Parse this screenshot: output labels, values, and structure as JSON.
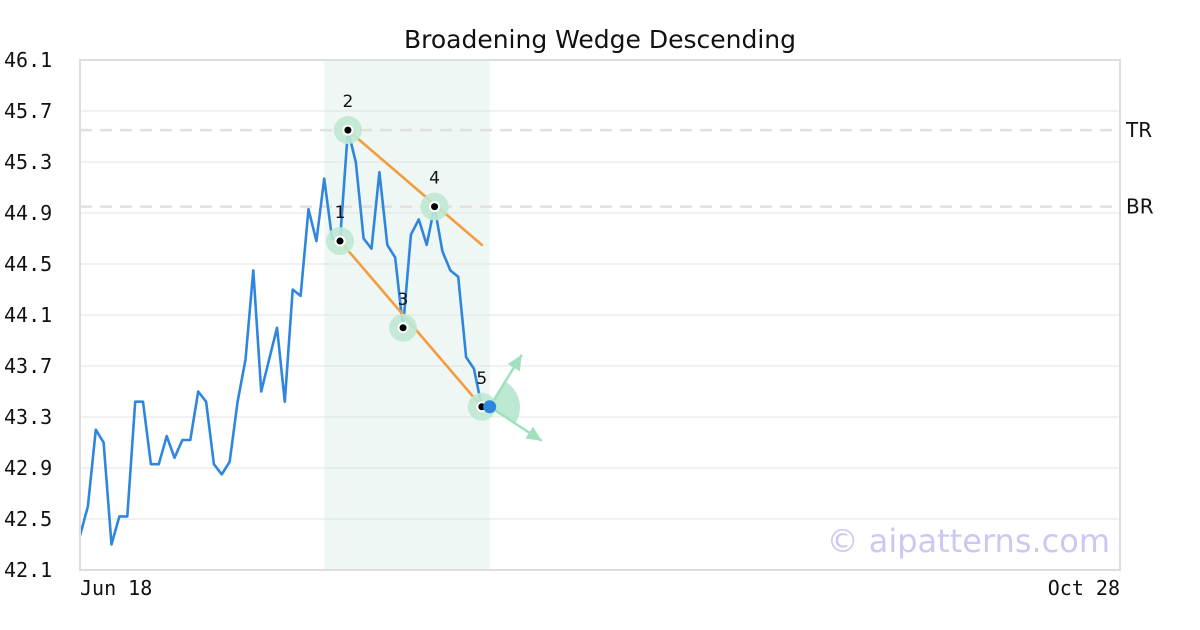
{
  "chart_data": {
    "type": "line",
    "title": "Broadening Wedge Descending",
    "xlabel": "",
    "ylabel": "",
    "x_range": [
      "Jun 18",
      "Oct 28"
    ],
    "x_tick_labels": [
      "Jun 18",
      "Oct 28"
    ],
    "ylim": [
      42.1,
      46.1
    ],
    "y_ticks": [
      42.1,
      42.5,
      42.9,
      43.3,
      43.7,
      44.1,
      44.5,
      44.9,
      45.3,
      45.7,
      46.1
    ],
    "grid": true,
    "series": [
      {
        "color": "#2e86de",
        "points": [
          [
            "Jun 18",
            42.37
          ],
          [
            "Jun 19",
            42.6
          ],
          [
            "Jun 20",
            43.2
          ],
          [
            "Jun 21",
            43.1
          ],
          [
            "Jun 22",
            42.3
          ],
          [
            "Jun 23",
            42.52
          ],
          [
            "Jun 24",
            42.52
          ],
          [
            "Jun 25",
            43.42
          ],
          [
            "Jun 26",
            43.42
          ],
          [
            "Jun 27",
            42.93
          ],
          [
            "Jun 28",
            42.93
          ],
          [
            "Jun 29",
            43.15
          ],
          [
            "Jun 30",
            42.98
          ],
          [
            "Jul 1",
            43.12
          ],
          [
            "Jul 2",
            43.12
          ],
          [
            "Jul 3",
            43.5
          ],
          [
            "Jul 4",
            43.42
          ],
          [
            "Jul 5",
            42.93
          ],
          [
            "Jul 6",
            42.85
          ],
          [
            "Jul 7",
            42.95
          ],
          [
            "Jul 8",
            43.42
          ],
          [
            "Jul 9",
            43.75
          ],
          [
            "Jul 10",
            44.45
          ],
          [
            "Jul 11",
            43.5
          ],
          [
            "Jul 12",
            43.75
          ],
          [
            "Jul 13",
            44.0
          ],
          [
            "Jul 14",
            43.42
          ],
          [
            "Jul 15",
            44.3
          ],
          [
            "Jul 16",
            44.25
          ],
          [
            "Jul 17",
            44.93
          ],
          [
            "Jul 18",
            44.68
          ],
          [
            "Jul 19",
            45.17
          ],
          [
            "Jul 20",
            44.7
          ],
          [
            "Jul 21",
            44.68
          ],
          [
            "Jul 22",
            45.55
          ],
          [
            "Jul 23",
            45.3
          ],
          [
            "Jul 24",
            44.7
          ],
          [
            "Jul 25",
            44.62
          ],
          [
            "Jul 26",
            45.22
          ],
          [
            "Jul 27",
            44.65
          ],
          [
            "Jul 28",
            44.55
          ],
          [
            "Jul 29",
            44.0
          ],
          [
            "Jul 30",
            44.73
          ],
          [
            "Jul 31",
            44.85
          ],
          [
            "Aug 1",
            44.65
          ],
          [
            "Aug 2",
            44.95
          ],
          [
            "Aug 3",
            44.6
          ],
          [
            "Aug 4",
            44.45
          ],
          [
            "Aug 5",
            44.4
          ],
          [
            "Aug 6",
            43.77
          ],
          [
            "Aug 7",
            43.68
          ],
          [
            "Aug 8",
            43.38
          ]
        ]
      }
    ],
    "pattern_points": [
      {
        "label": "1",
        "x": "Jul 21",
        "y": 44.68
      },
      {
        "label": "2",
        "x": "Jul 22",
        "y": 45.55
      },
      {
        "label": "3",
        "x": "Jul 29",
        "y": 44.0
      },
      {
        "label": "4",
        "x": "Aug 2",
        "y": 44.95
      },
      {
        "label": "5",
        "x": "Aug 8",
        "y": 43.38
      }
    ],
    "current_point": {
      "x": "Aug 9",
      "y": 43.38,
      "color": "#2e86de"
    },
    "trendlines": [
      {
        "from": {
          "x": "Jul 22",
          "y": 45.55
        },
        "to": {
          "x": "Aug 8",
          "y": 44.65
        },
        "color": "#f39c40"
      },
      {
        "from": {
          "x": "Jul 21",
          "y": 44.68
        },
        "to": {
          "x": "Aug 8",
          "y": 43.38
        },
        "color": "#f39c40"
      }
    ],
    "levels": [
      {
        "label": "TR",
        "y": 45.55
      },
      {
        "label": "BR",
        "y": 44.95
      }
    ],
    "pattern_region": {
      "from": "Jul 19",
      "to": "Aug 9",
      "color": "#eef7f3"
    },
    "watermark": "© aipatterns.com",
    "colors": {
      "line": "#2e86de",
      "trend": "#f39c40",
      "marker_halo": "#bfe8d4",
      "arrows": "#9fe0be",
      "grid": "#e3e3e3",
      "level": "#e0e0e0",
      "frame": "#dddddd"
    }
  }
}
